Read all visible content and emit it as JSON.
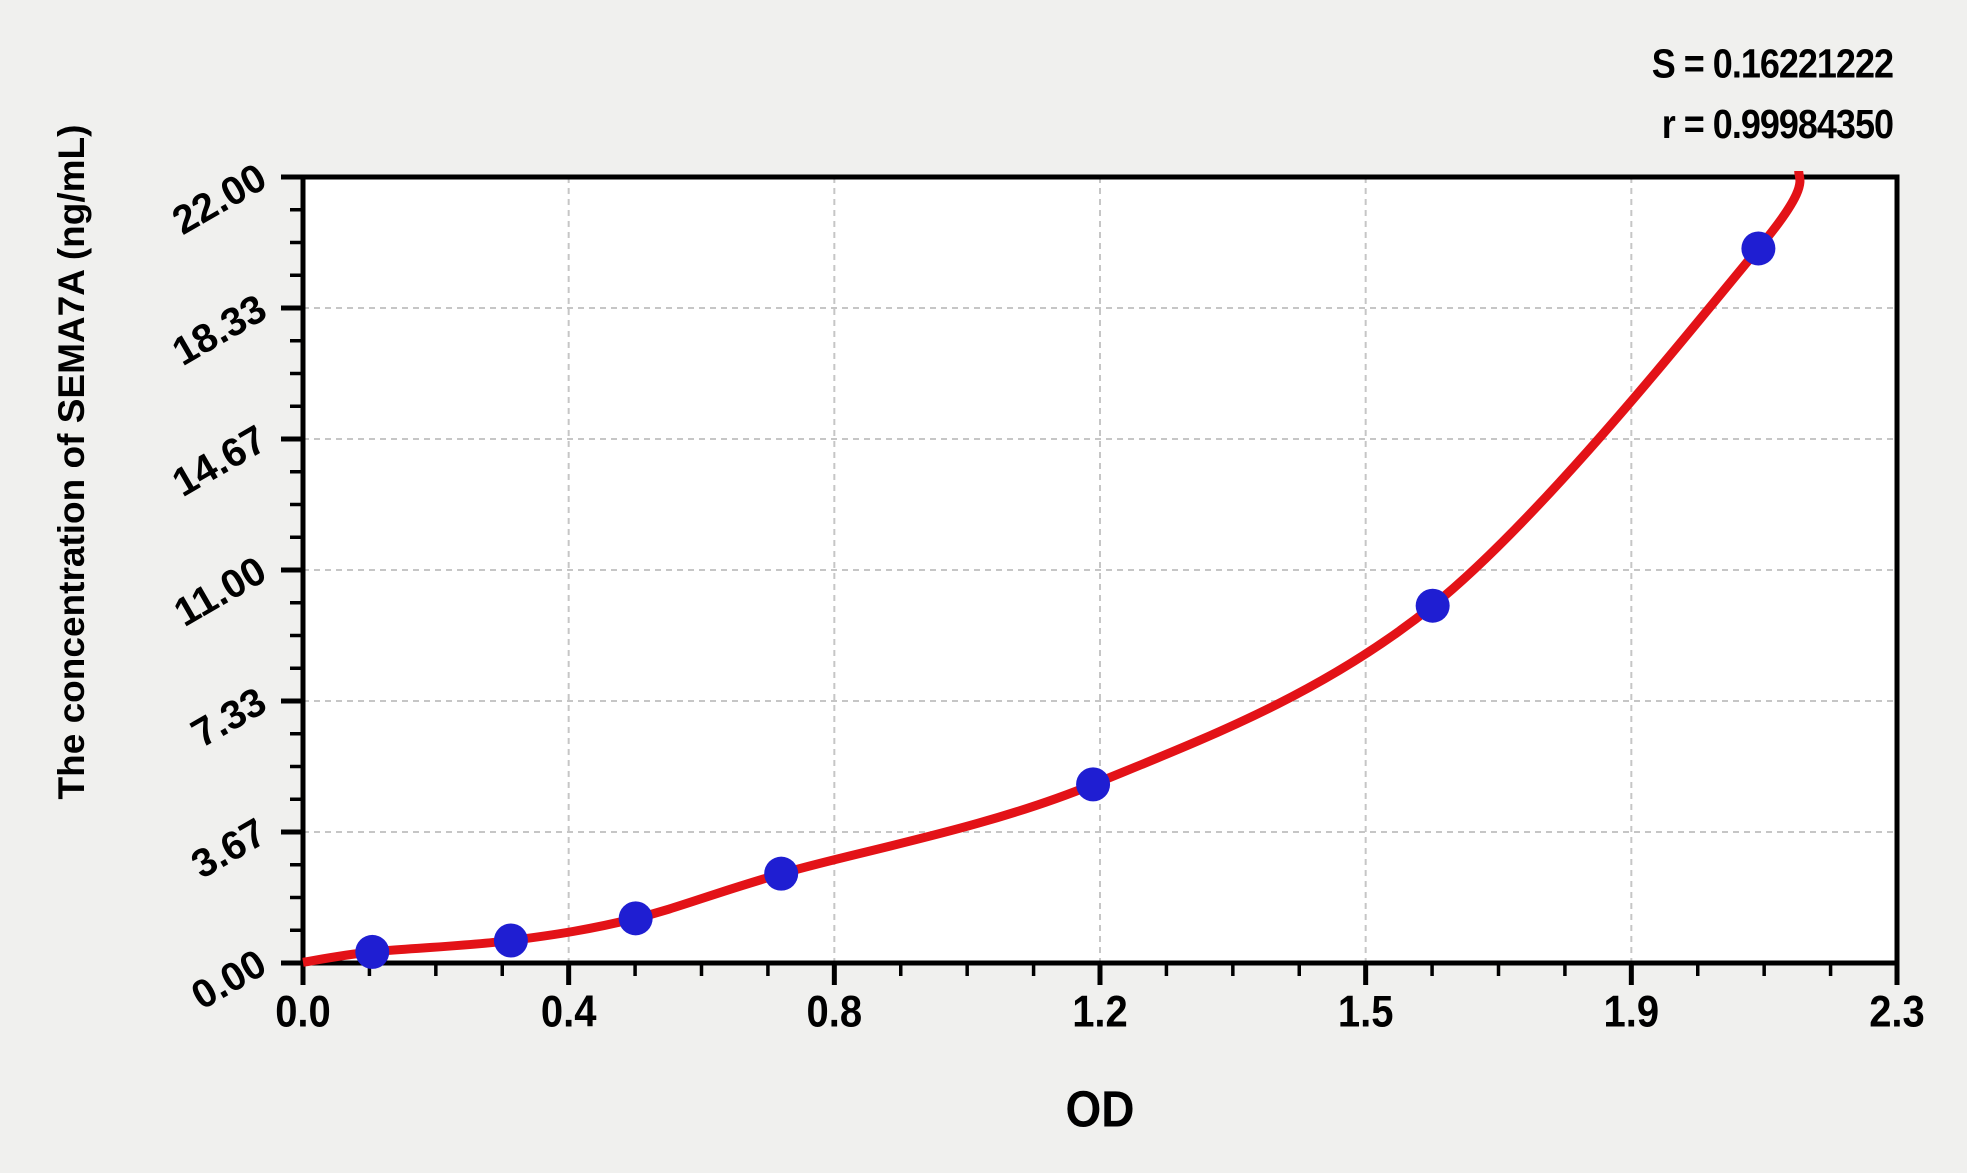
{
  "page": {
    "background": "#f0f0ee"
  },
  "annotations": {
    "s_label": "S = 0.16221222",
    "r_label": "r = 0.99984350"
  },
  "chart_data": {
    "type": "scatter",
    "title": "",
    "xlabel": "OD",
    "ylabel": "The concentration of SEMA7A (ng/mL)",
    "xlim": [
      0,
      2.3
    ],
    "ylim": [
      0,
      22
    ],
    "x_tick_values": [
      0,
      0.38333,
      0.76667,
      1.15,
      1.53333,
      1.91667,
      2.3
    ],
    "x_tick_labels": [
      "0.0",
      "0.4",
      "0.8",
      "1.2",
      "1.5",
      "1.9",
      "2.3"
    ],
    "y_tick_values": [
      0,
      3.66667,
      7.33333,
      11,
      14.66667,
      18.33333,
      22
    ],
    "y_tick_labels": [
      "0.00",
      "3.67",
      "7.33",
      "11.00",
      "14.67",
      "18.33",
      "22.00"
    ],
    "minor_divisions": 4,
    "grid": {
      "show": true,
      "style": "dashed",
      "color": "#c6c6c6"
    },
    "legend": null,
    "stats": {
      "S": "0.16221222",
      "r": "0.99984350"
    },
    "series": [
      {
        "name": "standard-points",
        "type": "scatter",
        "color": "#1f1ed2",
        "marker_radius": 17,
        "points": [
          [
            0.1,
            0.31
          ],
          [
            0.3,
            0.63
          ],
          [
            0.48,
            1.25
          ],
          [
            0.69,
            2.5
          ],
          [
            1.14,
            5.0
          ],
          [
            1.63,
            10.0
          ],
          [
            2.1,
            20.0
          ]
        ]
      },
      {
        "name": "fitted-curve",
        "type": "line",
        "color": "#e31217",
        "width": 9,
        "points": [
          [
            0.0,
            0.02
          ],
          [
            0.1,
            0.31
          ],
          [
            0.3,
            0.63
          ],
          [
            0.48,
            1.25
          ],
          [
            0.69,
            2.5
          ],
          [
            1.14,
            5.0
          ],
          [
            1.63,
            10.0
          ],
          [
            2.1,
            20.0
          ],
          [
            2.16,
            22.3
          ]
        ]
      }
    ]
  }
}
